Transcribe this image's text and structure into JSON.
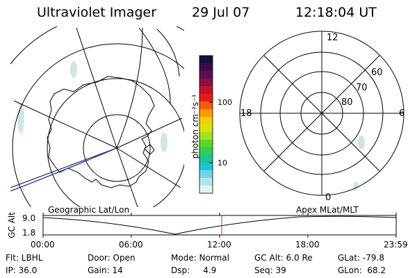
{
  "header": {
    "title": "Ultraviolet Imager",
    "date": "29 Jul 07",
    "time": "12:18:04 UT"
  },
  "colorbar": {
    "label": "photon cm⁻²s⁻¹",
    "ticks": [
      "100",
      "10"
    ],
    "colors": [
      "#1a0f3a",
      "#3a0a4a",
      "#5c0f55",
      "#8a1040",
      "#c4122a",
      "#e61a1a",
      "#f55a0d",
      "#fa9a05",
      "#f5cf05",
      "#d8e30a",
      "#a4e01a",
      "#5ad629",
      "#2ecf52",
      "#1ac59a",
      "#22c2d6",
      "#6fd6e8",
      "#b3e6ec",
      "#e6f3f3"
    ]
  },
  "left_map": {
    "caption": "Geographic Lat/Lon"
  },
  "right_map": {
    "caption": "Apex MLat/MLT",
    "mlt_labels": {
      "top": "12",
      "left": "18",
      "right": "6",
      "bottom": "0"
    },
    "mlat_labels": [
      "60",
      "70",
      "80"
    ]
  },
  "altitude_plot": {
    "ylabel": "GC Alt",
    "yticks": [
      "9.0",
      "1.8"
    ],
    "xticks": [
      "00:00",
      "06:00",
      "12:00",
      "18:00",
      "23:59"
    ],
    "current_time_marker_color": "#c0302b"
  },
  "info": {
    "flt": "Flt: LBHL",
    "door": "Door: Open",
    "mode": "Mode: Normal",
    "gcalt": "GC Alt: 6.0 Re",
    "glat": "GLat: -79.8",
    "ip": "IP: 36.0",
    "gain": "Gain: 14",
    "dsp": "Dsp:     4.9",
    "seq": "Seq: 39",
    "glon": "GLon:  68.2"
  }
}
